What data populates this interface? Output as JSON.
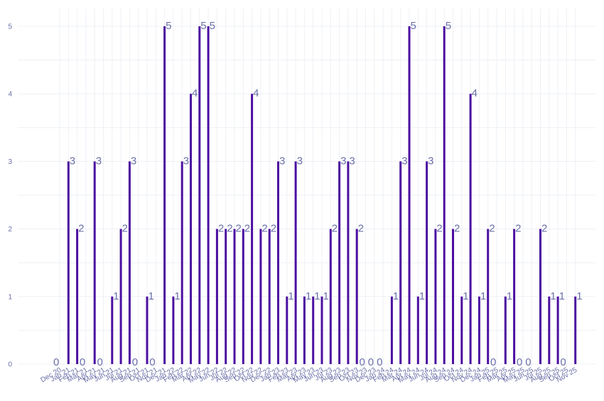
{
  "chart_data": {
    "type": "bar",
    "title": "",
    "xlabel": "",
    "ylabel": "",
    "ylim": [
      0,
      5.25
    ],
    "yticks": [
      0,
      1,
      2,
      3,
      4,
      5
    ],
    "grid": true,
    "legend": "none",
    "bar_color": "#4b0fa0",
    "label_color": "#6a6fa8",
    "categories": [
      "Dec 20",
      "Jan 21",
      "Feb 21",
      "Mar 21",
      "Apr 21",
      "May 21",
      "Jun 21",
      "Jul 21",
      "Aug 21",
      "Sep 21",
      "Oct 21",
      "Nov 21",
      "Dec 21",
      "Jan 22",
      "Feb 22",
      "Mar 22",
      "Apr 22",
      "May 22",
      "Jun 22",
      "Jul 22",
      "Aug 22",
      "Sep 22",
      "Oct 22",
      "Nov 22",
      "Dec 22",
      "Jan 23",
      "Feb 23",
      "Mar 23",
      "Apr 23",
      "May 23",
      "Jun 23",
      "Jul 23",
      "Aug 23",
      "Sep 23",
      "Oct 23",
      "Nov 23",
      "Dec 23",
      "Jan 24",
      "Feb 24",
      "Mar 24",
      "Apr 24",
      "May 24",
      "Jun 24",
      "Jul 24",
      "Aug 24",
      "Sep 24",
      "Oct 24",
      "Nov 24",
      "Dec 24",
      "Jan 25",
      "Feb 25",
      "Mar 25",
      "Apr 25",
      "May 25",
      "Jun 25",
      "Jul 25",
      "Aug 25",
      "Sep 25",
      "Oct 25",
      "Nov 25"
    ],
    "values": [
      0,
      3,
      2,
      0,
      3,
      0,
      1,
      2,
      3,
      0,
      1,
      0,
      5,
      1,
      3,
      4,
      5,
      5,
      2,
      2,
      2,
      2,
      4,
      2,
      2,
      3,
      1,
      3,
      1,
      1,
      1,
      2,
      3,
      3,
      2,
      0,
      0,
      0,
      1,
      3,
      5,
      1,
      3,
      2,
      5,
      2,
      1,
      4,
      1,
      2,
      0,
      1,
      2,
      0,
      0,
      2,
      1,
      1,
      0,
      1
    ]
  }
}
